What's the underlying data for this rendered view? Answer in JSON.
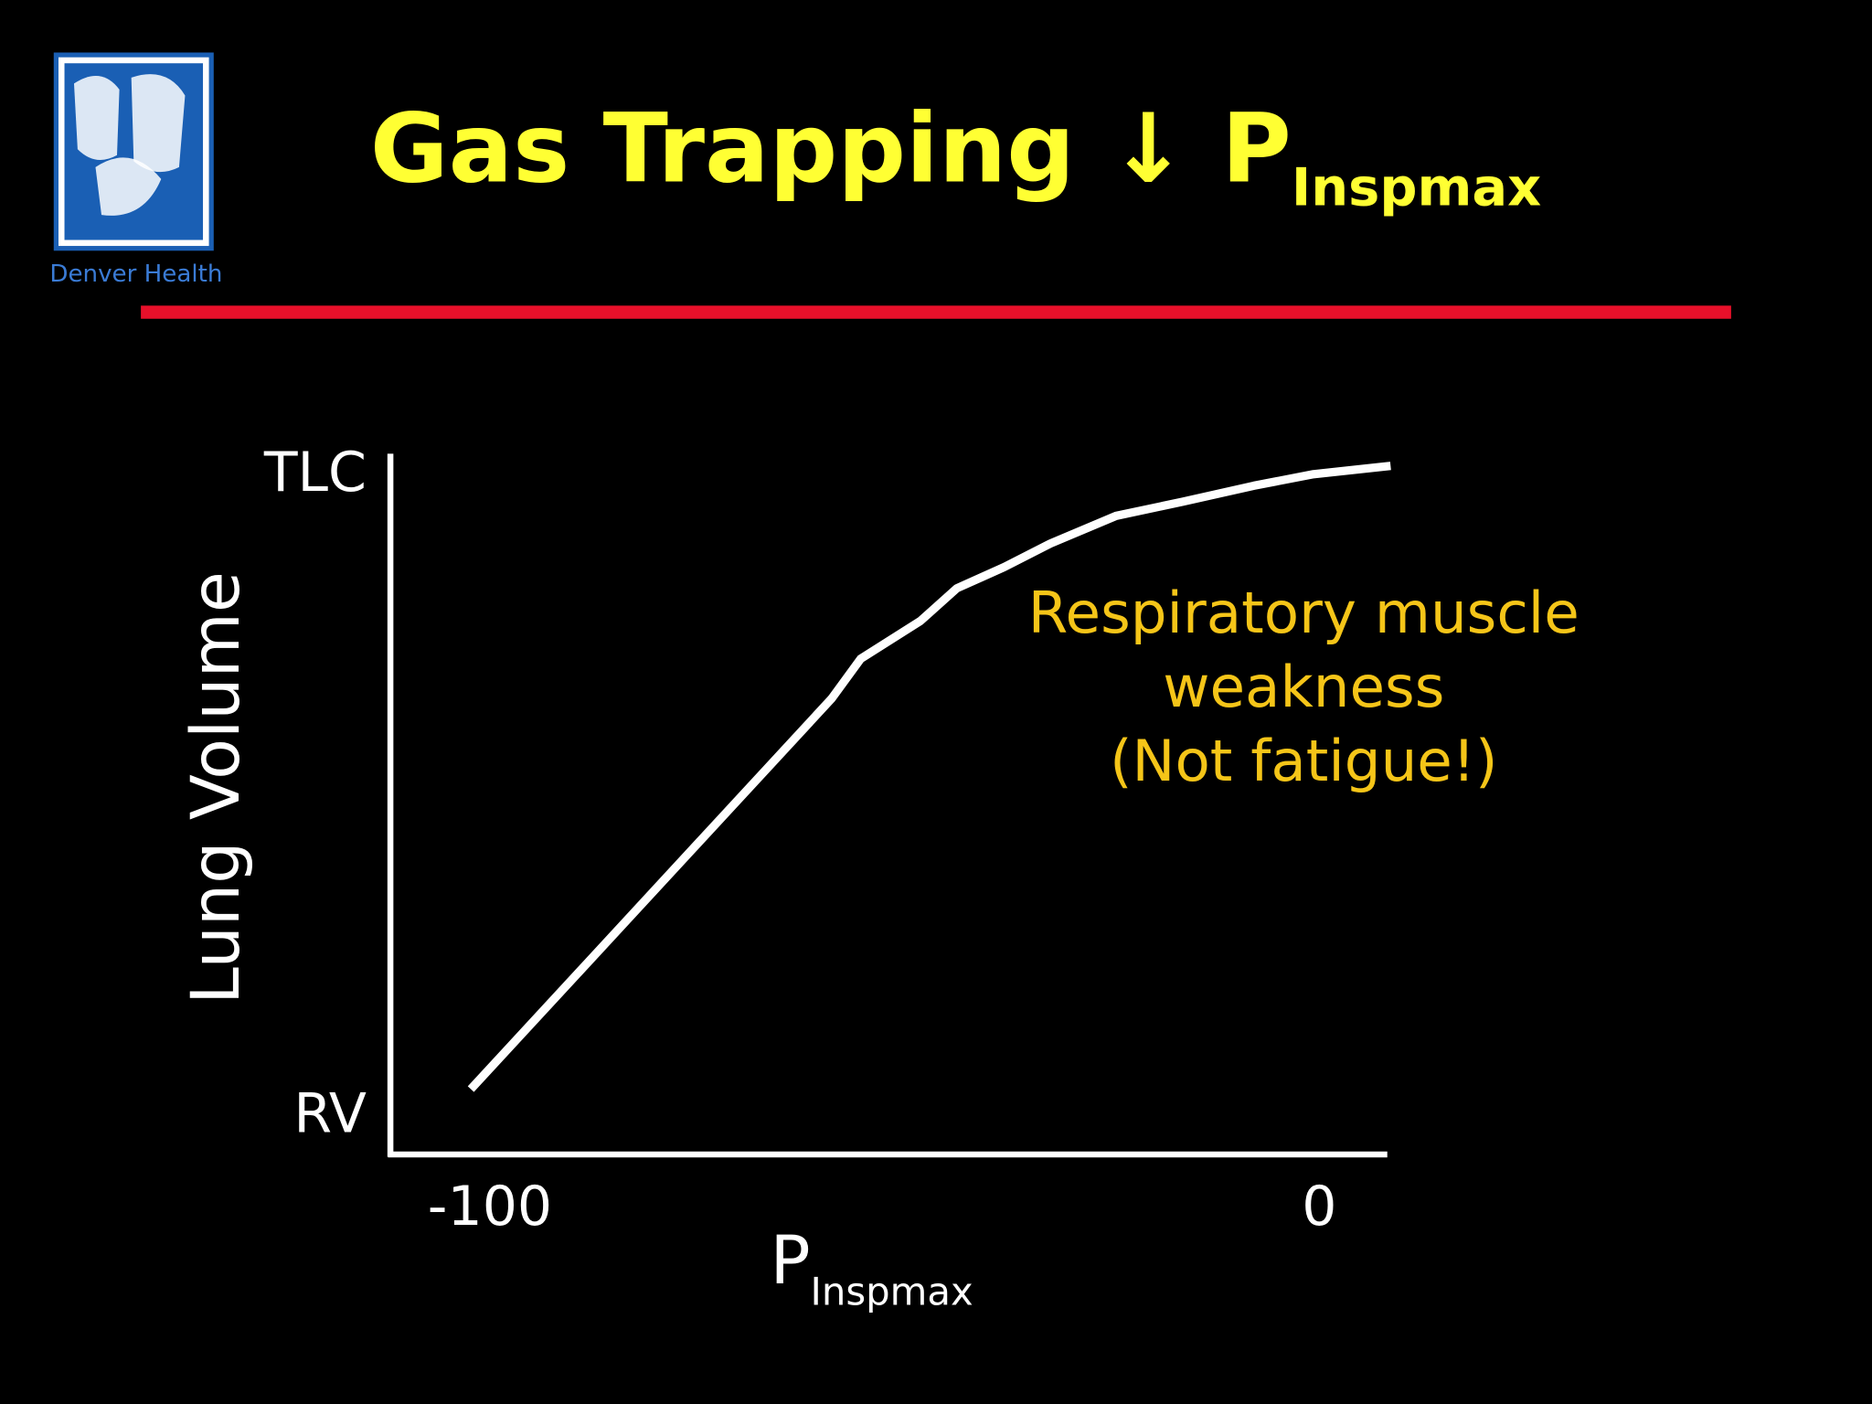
{
  "logo_text": "Denver Health",
  "chart_data": {
    "type": "line",
    "title": "Gas Trapping ↓ P",
    "title_subscript": "Inspmax",
    "x_label": "P",
    "x_label_subscript": "Inspmax",
    "y_label": "Lung Volume",
    "annotation": [
      "Respiratory muscle",
      "weakness",
      "(Not fatigue!)"
    ],
    "x": [
      -102.3,
      -58.8,
      -55.3,
      -48.1,
      -43.7,
      -38.0,
      -32.4,
      -24.5,
      -16.5,
      -7.9,
      -0.7,
      8.6
    ],
    "series": [
      {
        "color": "#ffffff",
        "values": [
          0.037,
          0.646,
          0.708,
          0.767,
          0.818,
          0.851,
          0.888,
          0.931,
          0.953,
          0.978,
          0.996,
          1.009
        ]
      }
    ],
    "xlim": [
      -112,
      8.2
    ],
    "ylim": [
      -0.065,
      1.028
    ],
    "xticks": [
      -100,
      0
    ],
    "yticks": [
      {
        "value": 0,
        "label": "RV"
      },
      {
        "value": 1,
        "label": "TLC"
      }
    ],
    "grid": false
  }
}
